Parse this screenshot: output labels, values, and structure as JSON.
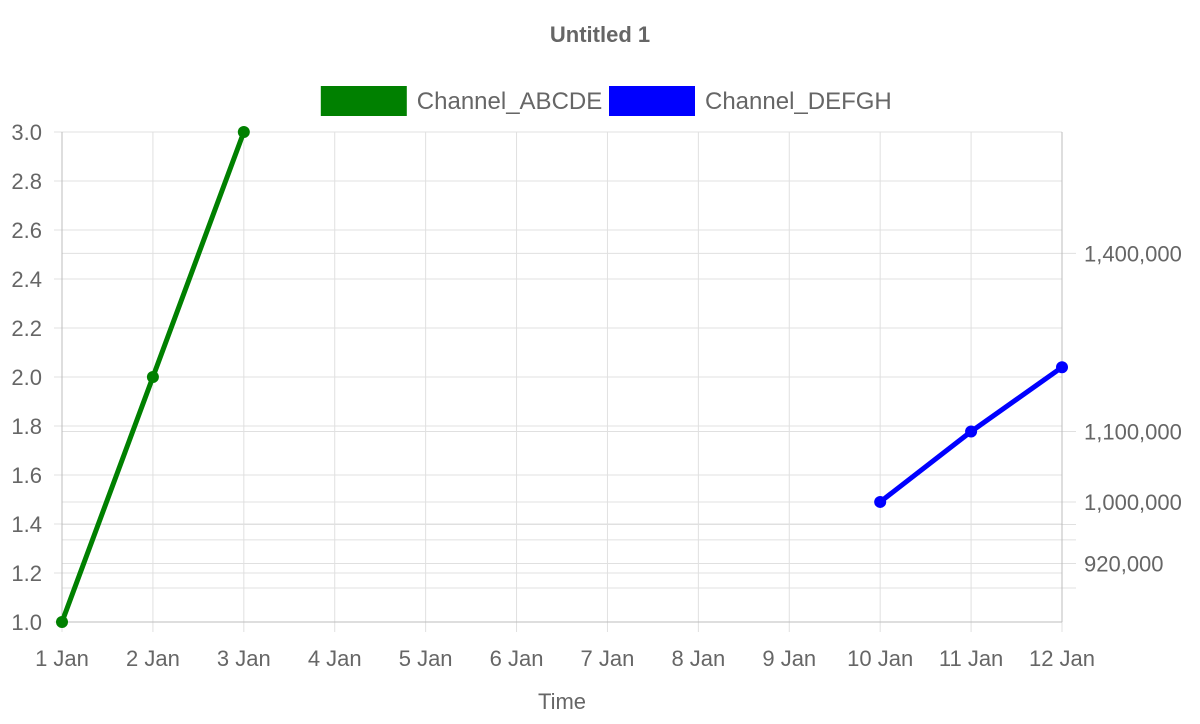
{
  "chart_data": {
    "type": "line",
    "title": "Untitled 1",
    "xlabel": "Time",
    "x_ticks": [
      "1 Jan",
      "2 Jan",
      "3 Jan",
      "4 Jan",
      "5 Jan",
      "6 Jan",
      "7 Jan",
      "8 Jan",
      "9 Jan",
      "10 Jan",
      "11 Jan",
      "12 Jan"
    ],
    "y_left": {
      "range": [
        1.0,
        3.0
      ],
      "ticks": [
        "1.0",
        "1.2",
        "1.4",
        "1.6",
        "1.8",
        "2.0",
        "2.2",
        "2.4",
        "2.6",
        "2.8",
        "3.0"
      ]
    },
    "y_right": {
      "scale": "log",
      "range": [
        850000,
        1650000
      ],
      "ticks": [
        "920,000",
        "1,000,000",
        "1,100,000",
        "1,400,000"
      ]
    },
    "legend_position": "top",
    "grid": true,
    "series": [
      {
        "name": "Channel_ABCDE",
        "color": "#008000",
        "axis": "left",
        "points": [
          {
            "x": "1 Jan",
            "y": 1.0
          },
          {
            "x": "2 Jan",
            "y": 2.0
          },
          {
            "x": "3 Jan",
            "y": 3.0
          }
        ]
      },
      {
        "name": "Channel_DEFGH",
        "color": "#0000ff",
        "axis": "right",
        "points": [
          {
            "x": "10 Jan",
            "y": 1000000
          },
          {
            "x": "11 Jan",
            "y": 1100000
          },
          {
            "x": "12 Jan",
            "y": 1200000
          }
        ]
      }
    ]
  }
}
